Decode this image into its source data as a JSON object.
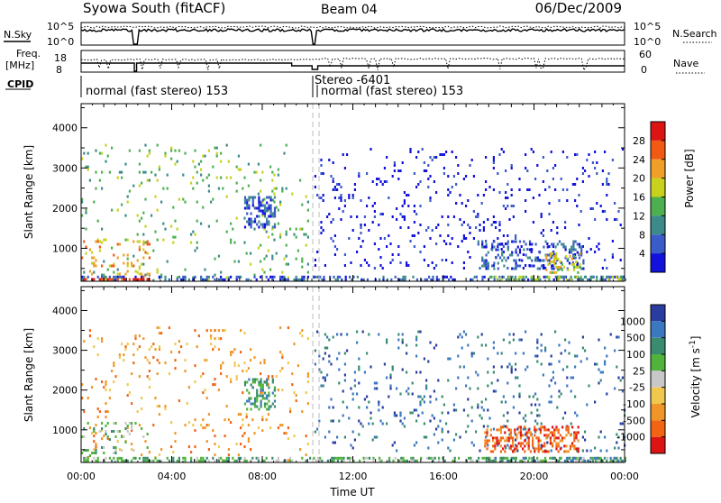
{
  "header": {
    "station": "Syowa South (fitACF)",
    "beam": "Beam 04",
    "date": "06/Dec/2009"
  },
  "aux_panels": {
    "nsky_label": "N.Sky",
    "nsky_ticks": [
      "10^5",
      "10^0"
    ],
    "nsearch_label": "N.Search",
    "nsearch_ticks": [
      "10^5",
      "10^0"
    ],
    "freq_label": "Freq.",
    "freq_unit": "[MHz]",
    "freq_ticks": [
      "18",
      "8"
    ],
    "nave_label": "Nave",
    "nave_ticks": [
      "60",
      "0"
    ],
    "cpid_label": "CPID",
    "cpid_segments": [
      {
        "label": "normal (fast stereo) 153",
        "start_hour": 0.0
      },
      {
        "label": "Stereo -6401",
        "start_hour": 10.25
      },
      {
        "label": "normal (fast stereo) 153",
        "start_hour": 10.3
      }
    ]
  },
  "chart_data": [
    {
      "type": "heatmap",
      "title": "",
      "ylabel": "Slant Range [km]",
      "xlabel": "",
      "x_range_hours": [
        0,
        24
      ],
      "ylim": [
        180,
        4600
      ],
      "y_ticks": [
        1000,
        2000,
        3000,
        4000
      ],
      "colorbar_label": "Power [dB]",
      "colorbar_ticks": [
        "4",
        "8",
        "12",
        "16",
        "20",
        "24",
        "28"
      ],
      "colorbar_colors": [
        "#1212dc",
        "#3a5cc8",
        "#3d8a8a",
        "#4db050",
        "#c8d21e",
        "#f0a028",
        "#f05a14",
        "#dc1414"
      ],
      "echo_regions": [
        {
          "t0": 0.0,
          "t1": 10.0,
          "r0": 200,
          "r1": 3600,
          "density": 0.05,
          "color_index": 3
        },
        {
          "t0": 0.0,
          "t1": 3.0,
          "r0": 200,
          "r1": 1200,
          "density": 0.14,
          "color_index": 5
        },
        {
          "t0": 0.0,
          "t1": 24.0,
          "r0": 200,
          "r1": 320,
          "density": 0.4,
          "color_index": 1
        },
        {
          "t0": 0.0,
          "t1": 3.0,
          "r0": 200,
          "r1": 260,
          "density": 0.7,
          "color_index": 7
        },
        {
          "t0": 7.2,
          "t1": 8.6,
          "r0": 1500,
          "r1": 2300,
          "density": 0.45,
          "color_index": 1
        },
        {
          "t0": 10.3,
          "t1": 24.0,
          "r0": 500,
          "r1": 3500,
          "density": 0.07,
          "color_index": 0
        },
        {
          "t0": 17.5,
          "t1": 22.2,
          "r0": 500,
          "r1": 1200,
          "density": 0.3,
          "color_index": 1
        },
        {
          "t0": 20.5,
          "t1": 22.0,
          "r0": 400,
          "r1": 900,
          "density": 0.3,
          "color_index": 4
        },
        {
          "t0": 18.0,
          "t1": 24.0,
          "r0": 200,
          "r1": 320,
          "density": 0.45,
          "color_index": 3
        }
      ]
    },
    {
      "type": "heatmap",
      "title": "",
      "ylabel": "Slant Range [km]",
      "xlabel": "Time UT",
      "x_range_hours": [
        0,
        24
      ],
      "x_ticks": [
        "00:00",
        "04:00",
        "08:00",
        "12:00",
        "16:00",
        "20:00",
        "00:00"
      ],
      "ylim": [
        180,
        4600
      ],
      "y_ticks": [
        1000,
        2000,
        3000,
        4000
      ],
      "colorbar_label": "Velocity [m s^-1]",
      "colorbar_ticks": [
        "1000",
        "500",
        "100",
        "25",
        "-25",
        "-100",
        "-500",
        "-1000"
      ],
      "colorbar_colors": [
        "#2a3ca0",
        "#3c78c0",
        "#3a8c70",
        "#50b43c",
        "#c8c8c8",
        "#f0c850",
        "#f09628",
        "#f06414",
        "#dc1414"
      ],
      "echo_regions": [
        {
          "t0": 0.0,
          "t1": 10.0,
          "r0": 200,
          "r1": 3600,
          "density": 0.05,
          "color_index": 6
        },
        {
          "t0": 0.0,
          "t1": 3.0,
          "r0": 200,
          "r1": 1200,
          "density": 0.14,
          "color_index": 3
        },
        {
          "t0": 0.0,
          "t1": 24.0,
          "r0": 200,
          "r1": 320,
          "density": 0.4,
          "color_index": 3
        },
        {
          "t0": 7.2,
          "t1": 8.6,
          "r0": 1500,
          "r1": 2300,
          "density": 0.45,
          "color_index": 2
        },
        {
          "t0": 10.3,
          "t1": 24.0,
          "r0": 500,
          "r1": 3500,
          "density": 0.06,
          "color_index": 1
        },
        {
          "t0": 17.8,
          "t1": 22.0,
          "r0": 450,
          "r1": 1100,
          "density": 0.45,
          "color_index": 7
        },
        {
          "t0": 18.0,
          "t1": 24.0,
          "r0": 200,
          "r1": 320,
          "density": 0.45,
          "color_index": 2
        }
      ]
    }
  ]
}
